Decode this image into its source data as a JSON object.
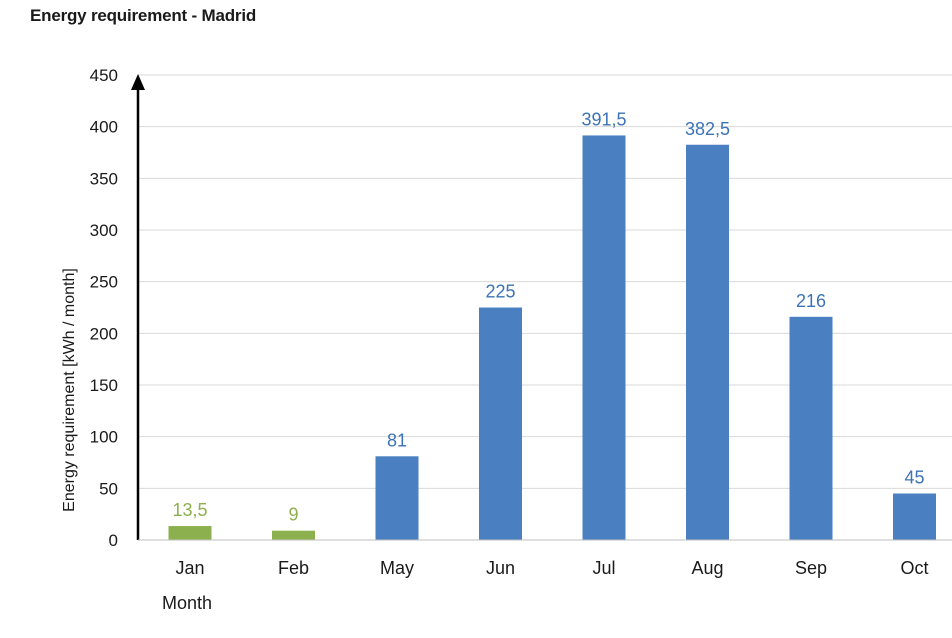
{
  "chart_data": {
    "type": "bar",
    "title": "Energy requirement - Madrid",
    "xlabel": "Month",
    "ylabel": "Energy requirement  [kWh / month]",
    "categories": [
      "Jan",
      "Feb",
      "May",
      "Jun",
      "Jul",
      "Aug",
      "Sep",
      "Oct"
    ],
    "values": [
      13.5,
      9,
      81,
      225,
      391.5,
      382.5,
      216,
      45
    ],
    "data_labels": [
      "13,5",
      "9",
      "81",
      "225",
      "391,5",
      "382,5",
      "216",
      "45"
    ],
    "bar_colors": [
      "#8db04e",
      "#8db04e",
      "#4a7fc1",
      "#4a7fc1",
      "#4a7fc1",
      "#4a7fc1",
      "#4a7fc1",
      "#4a7fc1"
    ],
    "label_colors": [
      "#8db04e",
      "#8db04e",
      "#3c73b6",
      "#3c73b6",
      "#3c73b6",
      "#3c73b6",
      "#3c73b6",
      "#3c73b6"
    ],
    "ylim": [
      0,
      450
    ],
    "yticks": [
      0,
      50,
      100,
      150,
      200,
      250,
      300,
      350,
      400,
      450
    ],
    "grid": true
  }
}
